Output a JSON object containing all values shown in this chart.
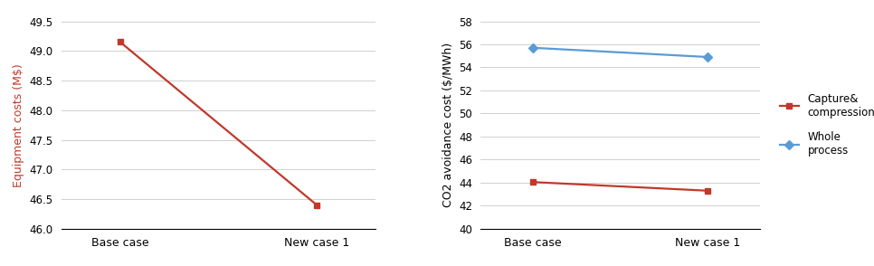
{
  "left": {
    "x_labels": [
      "Base case",
      "New case 1"
    ],
    "y_values": [
      49.15,
      46.4
    ],
    "ylabel": "Equipment costs (M$)",
    "ylabel_color": "#c0392b",
    "line_color": "#c0392b",
    "marker": "s",
    "ylim": [
      46,
      49.5
    ],
    "yticks": [
      46,
      46.5,
      47,
      47.5,
      48,
      48.5,
      49,
      49.5
    ]
  },
  "right": {
    "x_labels": [
      "Base case",
      "New case 1"
    ],
    "series": [
      {
        "label": "Capture&\ncompression",
        "values": [
          44.05,
          43.3
        ],
        "color": "#c0392b",
        "marker": "s"
      },
      {
        "label": "Whole\nprocess",
        "values": [
          55.7,
          54.9
        ],
        "color": "#5b9bd5",
        "marker": "D"
      }
    ],
    "ylabel": "CO2 avoidance cost ($/MWh)",
    "ylim": [
      40,
      58
    ],
    "yticks": [
      40,
      42,
      44,
      46,
      48,
      50,
      52,
      54,
      56,
      58
    ]
  },
  "fig_width": 9.66,
  "fig_height": 2.94,
  "dpi": 100
}
